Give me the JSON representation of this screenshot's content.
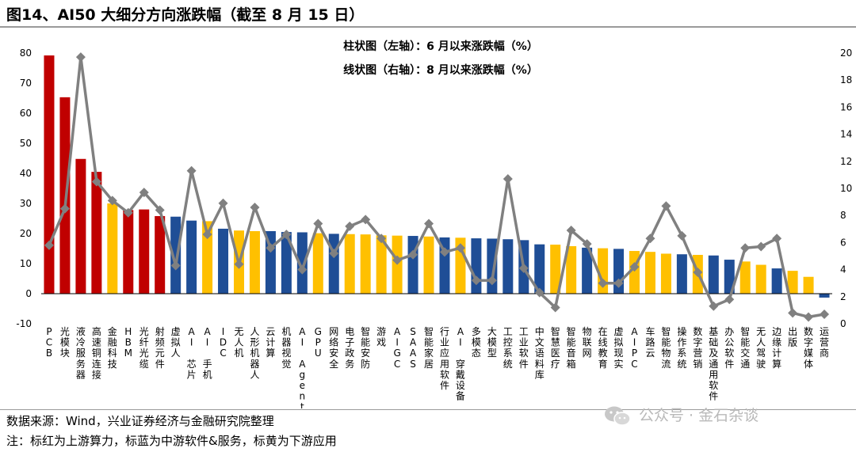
{
  "title": "图14、AI50 大细分方向涨跌幅（截至 8 月 15 日）",
  "source": "数据来源：Wind，兴业证券经济与金融研究院整理",
  "note": "注：标红为上游算力，标蓝为中游软件&服务，标黄为下游应用",
  "watermark": "公众号 · 金石杂谈",
  "watermark_icon": "wechat-icon",
  "colors": {
    "red": "#C00000",
    "blue": "#1F4E96",
    "yellow": "#FFC000",
    "line": "#808080",
    "marker": "#808080"
  },
  "chart_data": {
    "type": "bar+line",
    "legend": [
      "柱状图（左轴）：6 月以来涨跌幅（%）",
      "线状图（右轴）：8 月以来涨跌幅（%）"
    ],
    "legend_placement": "top-center",
    "y_left": {
      "min": -10,
      "max": 80,
      "ticks": [
        -10,
        0,
        10,
        20,
        30,
        40,
        50,
        60,
        70,
        80
      ]
    },
    "y_right": {
      "min": 0,
      "max": 20,
      "ticks": [
        0,
        2,
        4,
        6,
        8,
        10,
        12,
        14,
        16,
        18,
        20
      ]
    },
    "grid": false,
    "categories": [
      "PCB",
      "光模块",
      "液冷服务器",
      "高速铜连接",
      "金融科技",
      "HBM",
      "光纤光缆",
      "射频元件",
      "虚拟人",
      "AI 芯片",
      "AI 手机",
      "IDC",
      "无人机",
      "人形机器人",
      "云计算",
      "机器视觉",
      "AI Agent",
      "GPU",
      "网络安全",
      "电子政务",
      "智能安防",
      "游戏",
      "AIGC",
      "SAAS",
      "智能家居",
      "行业应用软件",
      "AI 穿戴设备",
      "多模态",
      "大模型",
      "工控系统",
      "工业软件",
      "中文语料库",
      "智慧医疗",
      "智能音箱",
      "物联网",
      "在线教育",
      "虚拟现实",
      "AIPC",
      "车路云",
      "智能物流",
      "操作系统",
      "数字营销",
      "基础及通用软件",
      "办公软件",
      "智能交通",
      "无人驾驶",
      "边缘计算",
      "出版",
      "数字媒体",
      "运营商"
    ],
    "category_groups": [
      "red",
      "red",
      "red",
      "red",
      "yellow",
      "red",
      "red",
      "red",
      "blue",
      "blue",
      "yellow",
      "blue",
      "yellow",
      "yellow",
      "blue",
      "blue",
      "blue",
      "yellow",
      "blue",
      "yellow",
      "yellow",
      "yellow",
      "yellow",
      "blue",
      "yellow",
      "blue",
      "yellow",
      "blue",
      "blue",
      "blue",
      "blue",
      "blue",
      "yellow",
      "yellow",
      "blue",
      "yellow",
      "blue",
      "yellow",
      "yellow",
      "yellow",
      "blue",
      "yellow",
      "blue",
      "blue",
      "yellow",
      "yellow",
      "blue",
      "yellow",
      "yellow",
      "blue"
    ],
    "series": [
      {
        "name": "6 月以来涨跌幅（%）",
        "axis": "left",
        "type": "bar",
        "values": [
          79.2,
          65.3,
          44.8,
          40.5,
          30.0,
          27.8,
          28.0,
          25.8,
          25.6,
          24.3,
          24.1,
          21.6,
          21.0,
          20.8,
          20.8,
          20.5,
          20.4,
          20.1,
          19.9,
          19.8,
          19.7,
          19.4,
          19.3,
          19.2,
          19.0,
          18.7,
          18.6,
          18.4,
          18.3,
          18.1,
          17.8,
          16.4,
          16.3,
          15.8,
          15.3,
          15.1,
          14.9,
          14.2,
          13.9,
          13.3,
          13.1,
          12.9,
          12.7,
          11.3,
          10.7,
          9.6,
          8.4,
          7.6,
          5.6,
          -1.3
        ]
      },
      {
        "name": "8 月以来涨跌幅（%）",
        "axis": "right",
        "type": "line",
        "values": [
          5.8,
          8.5,
          19.7,
          10.5,
          9.1,
          8.2,
          9.7,
          8.4,
          4.3,
          11.3,
          6.6,
          8.9,
          4.4,
          8.6,
          5.6,
          6.6,
          4.0,
          7.4,
          5.2,
          7.2,
          7.7,
          6.3,
          4.7,
          5.1,
          7.4,
          5.3,
          5.6,
          3.2,
          3.2,
          10.7,
          4.1,
          2.3,
          1.2,
          6.9,
          5.9,
          3.0,
          3.0,
          4.2,
          6.3,
          8.7,
          6.5,
          3.8,
          1.3,
          1.8,
          5.6,
          5.7,
          6.3,
          0.8,
          0.5,
          0.7
        ]
      }
    ]
  }
}
